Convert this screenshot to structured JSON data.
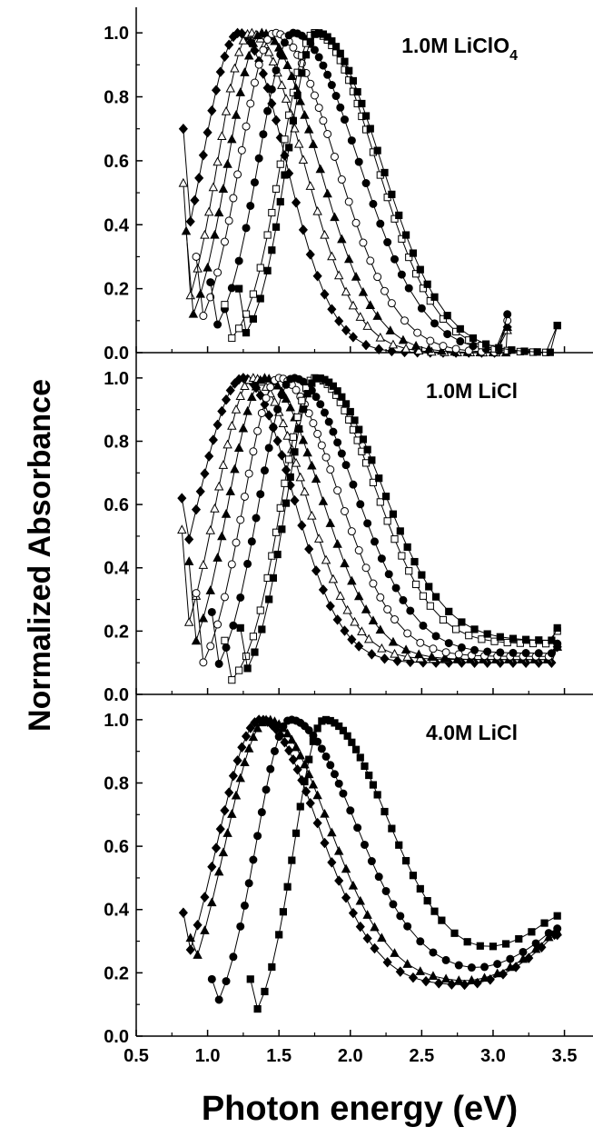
{
  "chart_data": {
    "type": "line",
    "xlabel": "Photon energy (eV)",
    "ylabel": "Normalized Absorbance",
    "xlim": [
      0.5,
      3.7
    ],
    "x_ticks": [
      "0.5",
      "1.0",
      "1.5",
      "2.0",
      "2.5",
      "3.0",
      "3.5"
    ],
    "y_ticks": [
      "0.0",
      "0.2",
      "0.4",
      "0.6",
      "0.8",
      "1.0"
    ],
    "grid": false,
    "panels": [
      {
        "label_main": "1.0M LiClO",
        "label_sub": "4",
        "ylim": [
          0.0,
          1.08
        ],
        "series": [
          {
            "marker": "filled-diamond",
            "peak": 1.22,
            "start": 0.83,
            "start_y": 0.7,
            "end": 3.1,
            "end_y": 0.08,
            "wL": 0.36,
            "wR": 0.46
          },
          {
            "marker": "open-triangle",
            "peak": 1.3,
            "start": 0.83,
            "start_y": 0.53,
            "end": 3.1,
            "end_y": 0.07,
            "wL": 0.32,
            "wR": 0.52
          },
          {
            "marker": "filled-triangle",
            "peak": 1.38,
            "start": 0.85,
            "start_y": 0.38,
            "end": 3.1,
            "end_y": 0.08,
            "wL": 0.33,
            "wR": 0.55
          },
          {
            "marker": "open-circle",
            "peak": 1.47,
            "start": 0.92,
            "start_y": 0.3,
            "end": 3.1,
            "end_y": 0.1,
            "wL": 0.34,
            "wR": 0.6
          },
          {
            "marker": "filled-circle",
            "peak": 1.6,
            "start": 1.02,
            "start_y": 0.22,
            "end": 3.1,
            "end_y": 0.12,
            "wL": 0.34,
            "wR": 0.64
          },
          {
            "marker": "open-square",
            "peak": 1.75,
            "start": 1.12,
            "start_y": 0.15,
            "end": 3.45,
            "end_y": 0.085,
            "wL": 0.33,
            "wR": 0.6
          },
          {
            "marker": "filled-square",
            "peak": 1.77,
            "start": 1.22,
            "start_y": 0.2,
            "end": 3.45,
            "end_y": 0.085,
            "wL": 0.3,
            "wR": 0.62
          }
        ]
      },
      {
        "label_main": "1.0M LiCl",
        "label_sub": "",
        "ylim": [
          0.0,
          1.08
        ],
        "series": [
          {
            "marker": "filled-diamond",
            "peak": 1.25,
            "start": 0.82,
            "start_y": 0.62,
            "end": 3.45,
            "end_y": 0.15,
            "wL": 0.45,
            "wR": 0.48,
            "floor": 0.1
          },
          {
            "marker": "open-triangle",
            "peak": 1.32,
            "start": 0.82,
            "start_y": 0.52,
            "end": 3.45,
            "end_y": 0.15,
            "wL": 0.37,
            "wR": 0.5,
            "floor": 0.11
          },
          {
            "marker": "filled-triangle",
            "peak": 1.4,
            "start": 0.87,
            "start_y": 0.42,
            "end": 3.45,
            "end_y": 0.15,
            "wL": 0.36,
            "wR": 0.54,
            "floor": 0.11
          },
          {
            "marker": "open-circle",
            "peak": 1.5,
            "start": 0.92,
            "start_y": 0.32,
            "end": 3.45,
            "end_y": 0.16,
            "wL": 0.35,
            "wR": 0.57,
            "floor": 0.12
          },
          {
            "marker": "filled-circle",
            "peak": 1.6,
            "start": 1.03,
            "start_y": 0.26,
            "end": 3.45,
            "end_y": 0.16,
            "wL": 0.34,
            "wR": 0.6,
            "floor": 0.13
          },
          {
            "marker": "open-square",
            "peak": 1.75,
            "start": 1.12,
            "start_y": 0.17,
            "end": 3.45,
            "end_y": 0.2,
            "wL": 0.33,
            "wR": 0.58,
            "floor": 0.16
          },
          {
            "marker": "filled-square",
            "peak": 1.77,
            "start": 1.23,
            "start_y": 0.21,
            "end": 3.45,
            "end_y": 0.21,
            "wL": 0.31,
            "wR": 0.62,
            "floor": 0.17
          }
        ]
      },
      {
        "label_main": "4.0M LiCl",
        "label_sub": "",
        "ylim": [
          0.0,
          1.08
        ],
        "series": [
          {
            "marker": "filled-diamond",
            "peak": 1.37,
            "start": 0.83,
            "start_y": 0.39,
            "end": 3.45,
            "end_y": 0.32,
            "wL": 0.43,
            "wR": 0.57,
            "floor": 0.16,
            "rise": 0.17
          },
          {
            "marker": "filled-triangle",
            "peak": 1.42,
            "start": 0.88,
            "start_y": 0.31,
            "end": 3.45,
            "end_y": 0.33,
            "wL": 0.42,
            "wR": 0.6,
            "floor": 0.17,
            "rise": 0.17
          },
          {
            "marker": "filled-circle",
            "peak": 1.58,
            "start": 1.03,
            "start_y": 0.18,
            "end": 3.45,
            "end_y": 0.34,
            "wL": 0.34,
            "wR": 0.63,
            "floor": 0.2,
            "rise": 0.15
          },
          {
            "marker": "filled-square",
            "peak": 1.82,
            "start": 1.3,
            "start_y": 0.18,
            "end": 3.45,
            "end_y": 0.38,
            "wL": 0.3,
            "wR": 0.6,
            "floor": 0.25,
            "rise": 0.14
          }
        ]
      }
    ]
  }
}
